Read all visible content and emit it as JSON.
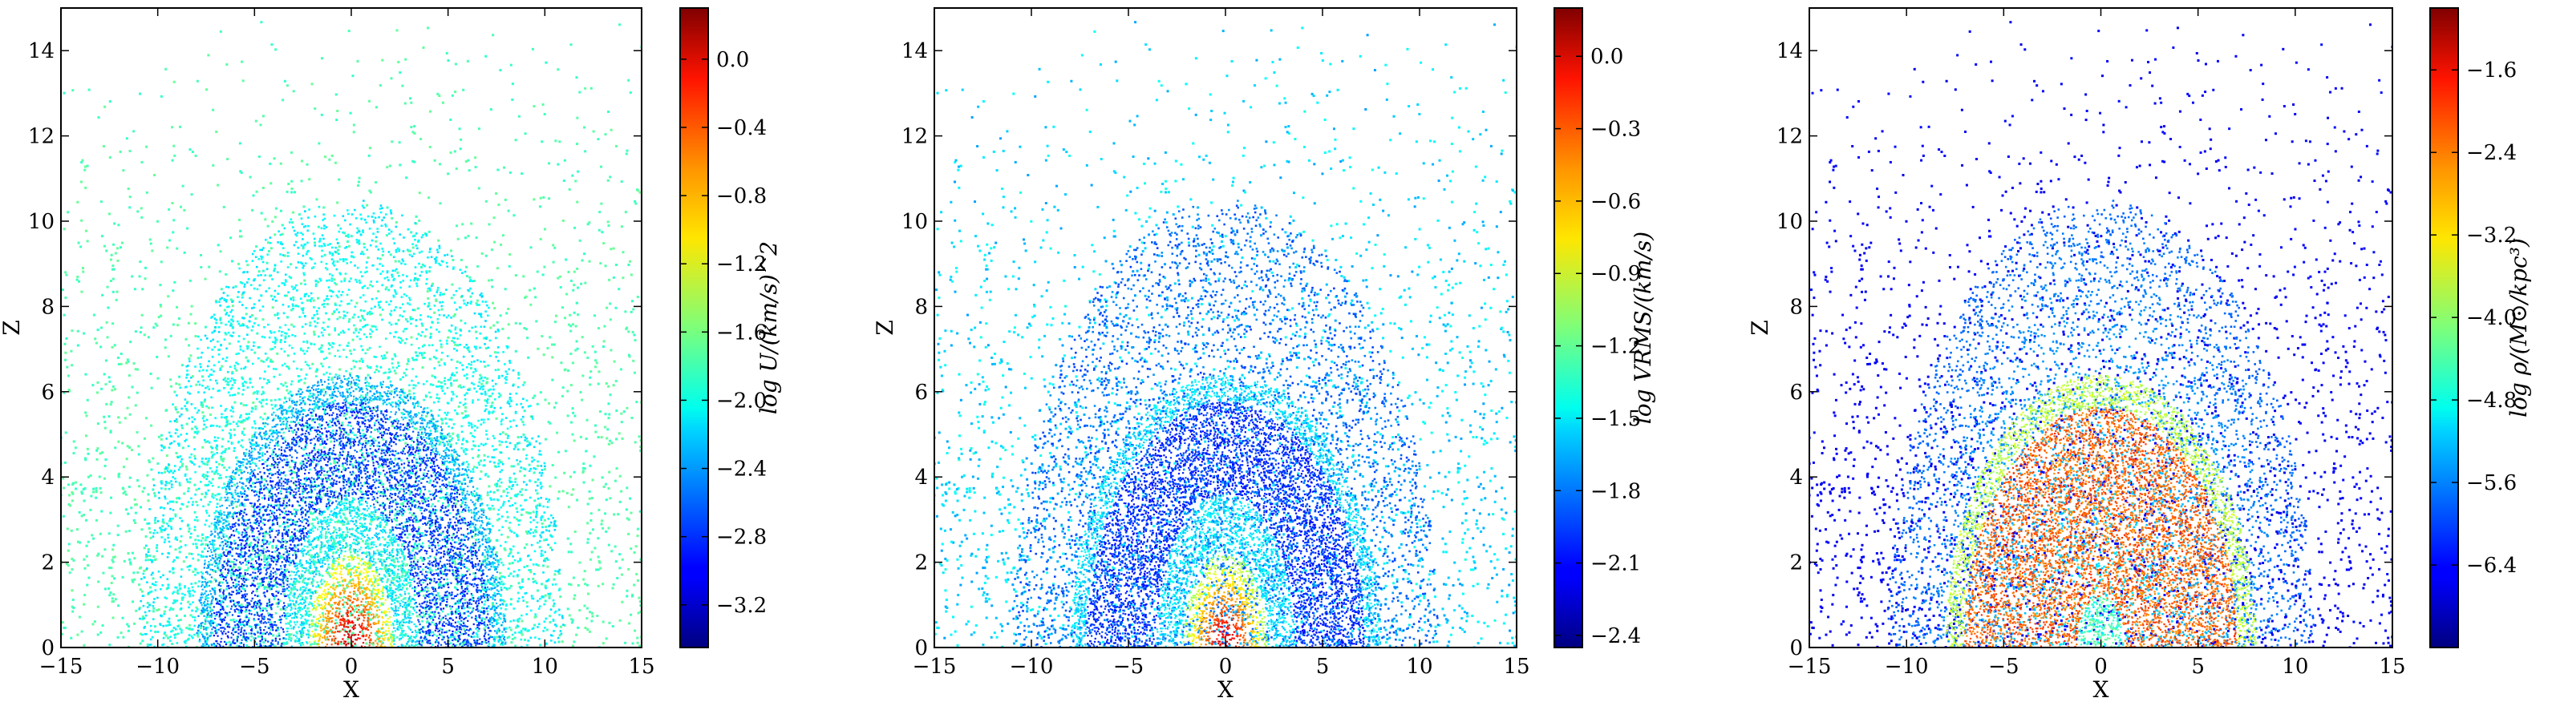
{
  "chart_data": [
    {
      "type": "scatter",
      "quantity": "U",
      "xlabel": "X",
      "ylabel": "Z",
      "xlim": [
        -15,
        15
      ],
      "ylim": [
        0,
        15
      ],
      "xticks": [
        -15,
        -10,
        -5,
        0,
        5,
        10,
        15
      ],
      "yticks": [
        0,
        2,
        4,
        6,
        8,
        10,
        12,
        14
      ],
      "colormap": "jet",
      "grid": false,
      "colorbar": {
        "label": "log U/(km/s)^2",
        "range": [
          -3.45,
          0.3
        ],
        "ticks": [
          0.0,
          -0.4,
          -0.8,
          -1.2,
          -1.6,
          -2.0,
          -2.4,
          -2.8,
          -3.2
        ]
      }
    },
    {
      "type": "scatter",
      "quantity": "VRMS",
      "xlabel": "X",
      "ylabel": "Z",
      "xlim": [
        -15,
        15
      ],
      "ylim": [
        0,
        15
      ],
      "xticks": [
        -15,
        -10,
        -5,
        0,
        5,
        10,
        15
      ],
      "yticks": [
        0,
        2,
        4,
        6,
        8,
        10,
        12,
        14
      ],
      "colormap": "jet",
      "grid": false,
      "colorbar": {
        "label": "log VRMS/(km/s)",
        "range": [
          -2.45,
          0.2
        ],
        "ticks": [
          0.0,
          -0.3,
          -0.6,
          -0.9,
          -1.2,
          -1.5,
          -1.8,
          -2.1,
          -2.4
        ]
      }
    },
    {
      "type": "scatter",
      "quantity": "rho",
      "xlabel": "X",
      "ylabel": "Z",
      "xlim": [
        -15,
        15
      ],
      "ylim": [
        0,
        15
      ],
      "xticks": [
        -15,
        -10,
        -5,
        0,
        5,
        10,
        15
      ],
      "yticks": [
        0,
        2,
        4,
        6,
        8,
        10,
        12,
        14
      ],
      "colormap": "jet",
      "grid": false,
      "colorbar": {
        "label": "log ρ/(M⊙/kpc³)",
        "range": [
          -7.2,
          -1.0
        ],
        "ticks": [
          -1.6,
          -2.4,
          -3.2,
          -4.0,
          -4.8,
          -5.6,
          -6.4
        ]
      }
    }
  ]
}
